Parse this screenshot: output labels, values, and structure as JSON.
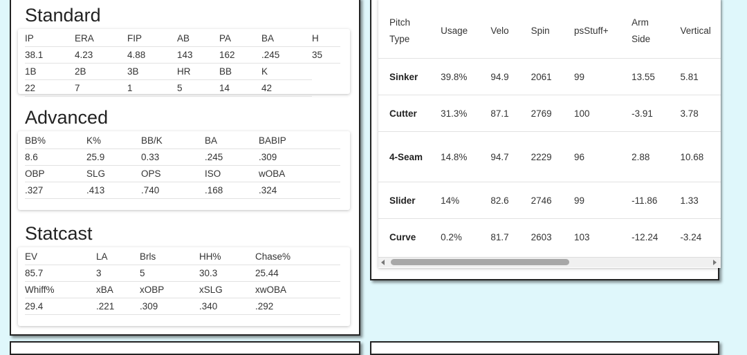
{
  "standard": {
    "title": "Standard",
    "rows": [
      [
        "IP",
        "ERA",
        "FIP",
        "AB",
        "PA",
        "BA",
        "H"
      ],
      [
        "38.1",
        "4.23",
        "4.88",
        "143",
        "162",
        ".245",
        "35"
      ],
      [
        "1B",
        "2B",
        "3B",
        "HR",
        "BB",
        "K",
        ""
      ],
      [
        "22",
        "7",
        "1",
        "5",
        "14",
        "42",
        ""
      ]
    ]
  },
  "advanced": {
    "title": "Advanced",
    "rows": [
      [
        "BB%",
        "K%",
        "BB/K",
        "BA",
        "BABIP"
      ],
      [
        "8.6",
        "25.9",
        "0.33",
        ".245",
        ".309"
      ],
      [
        "OBP",
        "SLG",
        "OPS",
        "ISO",
        "wOBA"
      ],
      [
        ".327",
        ".413",
        ".740",
        ".168",
        ".324"
      ]
    ]
  },
  "statcast": {
    "title": "Statcast",
    "rows": [
      [
        "EV",
        "LA",
        "Brls",
        "HH%",
        "Chase%"
      ],
      [
        "85.7",
        "3",
        "5",
        "30.3",
        "25.44"
      ],
      [
        "Whiff%",
        "xBA",
        "xOBP",
        "xSLG",
        "xwOBA"
      ],
      [
        "29.4",
        ".221",
        ".309",
        ".340",
        ".292"
      ]
    ]
  },
  "pitches": {
    "headers": [
      "Pitch Type",
      "Usage",
      "Velo",
      "Spin",
      "psStuff+",
      "Arm Side",
      "Vertical"
    ],
    "rows": [
      [
        "Sinker",
        "39.8%",
        "94.9",
        "2061",
        "99",
        "13.55",
        "5.81"
      ],
      [
        "Cutter",
        "31.3%",
        "87.1",
        "2769",
        "100",
        "-3.91",
        "3.78"
      ],
      [
        "4-Seam",
        "14.8%",
        "94.7",
        "2229",
        "96",
        "2.88",
        "10.68"
      ],
      [
        "Slider",
        "14%",
        "82.6",
        "2746",
        "99",
        "-11.86",
        "1.33"
      ],
      [
        "Curve",
        "0.2%",
        "81.7",
        "2603",
        "103",
        "-12.24",
        "-3.24"
      ]
    ]
  },
  "scrollbar": {
    "visible_fraction": 0.55
  }
}
